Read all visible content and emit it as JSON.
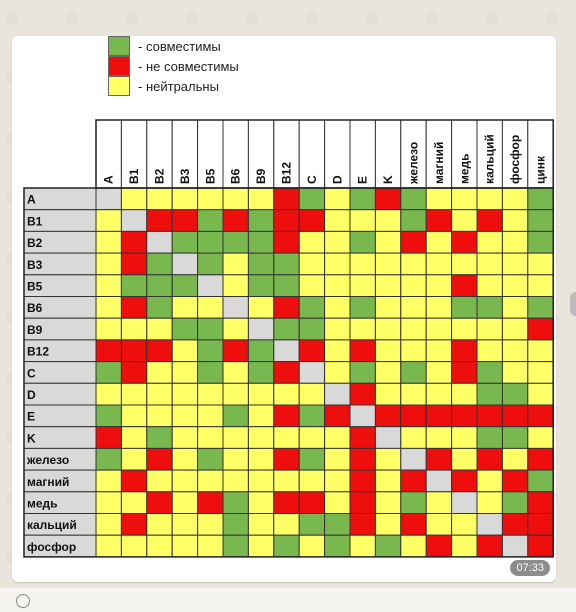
{
  "legend": [
    {
      "label": "- совместимы",
      "color": "#79b84f"
    },
    {
      "label": "- не совместимы",
      "color": "#ef0e0e"
    },
    {
      "label": "- нейтральны",
      "color": "#ffff66"
    }
  ],
  "colors": {
    "G": "#79b84f",
    "R": "#ef0e0e",
    "Y": "#ffff66",
    "X": "#d9d9d9",
    "header": "#d9d9d9"
  },
  "columns": [
    "A",
    "B1",
    "B2",
    "B3",
    "B5",
    "B6",
    "B9",
    "B12",
    "C",
    "D",
    "E",
    "K",
    "железо",
    "магний",
    "медь",
    "кальций",
    "фосфор",
    "цинк"
  ],
  "rows": [
    "A",
    "B1",
    "B2",
    "B3",
    "B5",
    "B6",
    "B9",
    "B12",
    "C",
    "D",
    "E",
    "K",
    "железо",
    "магний",
    "медь",
    "кальций",
    "фосфор"
  ],
  "matrix": [
    "XYYYYYYRGYGRGYYYYG",
    "YXRRGRGRRYYYGRYRYG",
    "YRXGGGGRYYGYRYRYYG",
    "YRGXGYGGYYYYYYYYYY",
    "YGGGXYGGYYYYYYRYYY",
    "YRGYYXYRGYGYYYGGYG",
    "YYYGGYXGGYYYYYYYYR",
    "RRRYGRGXRYRYYYRYYY",
    "GRYYGYGRXYGYGYRGYY",
    "YYYYYYYYYXRYYYYGGY",
    "GYYYYGYRGRXRRRRRRR",
    "RYGYYYYYYYRXYYYGGY",
    "GYRYGYYRGYRYXRYRYR",
    "YRYYYYYYYYRYRXRYRG",
    "YYRYRGYRRYRYGYXYGR",
    "YRYYYGYYGGRYRYYXRR",
    "YYYYYGYGYGYGYRYRXR"
  ],
  "timestamp": "07:33"
}
